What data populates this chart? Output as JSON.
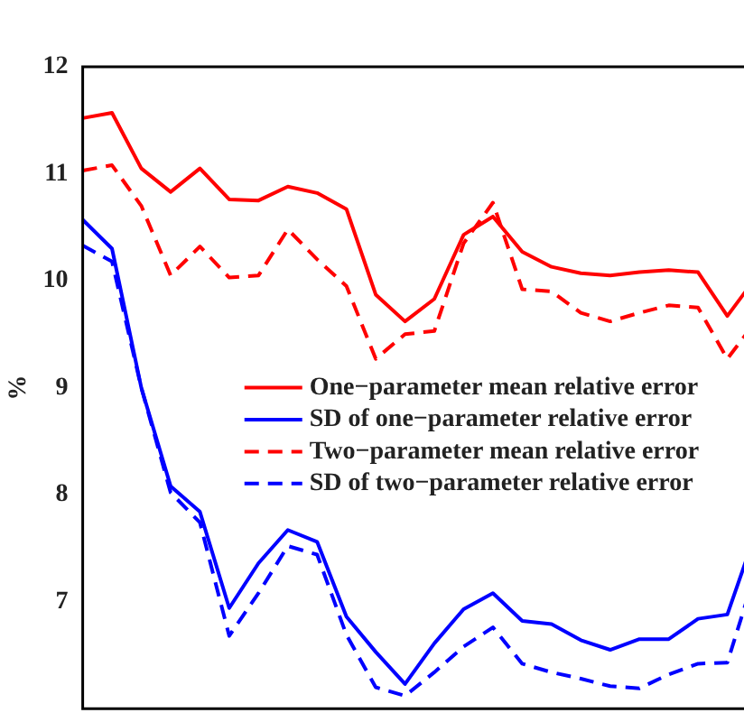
{
  "chart_data": {
    "type": "line",
    "ylabel": "%",
    "categories": [
      null,
      null,
      null,
      null,
      null,
      null,
      null,
      null,
      null,
      null,
      null,
      null,
      null,
      null,
      null,
      null,
      null,
      null,
      null,
      null,
      null,
      null,
      null,
      null
    ],
    "ylim": [
      6,
      12
    ],
    "yticks": [
      7,
      8,
      9,
      10,
      11,
      12
    ],
    "grid": false,
    "legend": "center",
    "marker": "none",
    "series": [
      {
        "name": "One−parameter mean relative error",
        "color": "#ff0000",
        "line_style": "solid",
        "values": [
          11.52,
          11.57,
          11.05,
          10.83,
          11.05,
          10.76,
          10.75,
          10.88,
          10.82,
          10.67,
          9.87,
          9.62,
          9.83,
          10.43,
          10.6,
          10.27,
          10.13,
          10.07,
          10.05,
          10.08,
          10.1,
          10.08,
          9.67,
          10.04
        ]
      },
      {
        "name": "SD of one−parameter relative error",
        "color": "#0000ff",
        "line_style": "solid",
        "values": [
          10.57,
          10.3,
          9.0,
          8.08,
          7.84,
          6.94,
          7.36,
          7.67,
          7.56,
          6.86,
          6.53,
          6.23,
          6.61,
          6.93,
          7.08,
          6.82,
          6.79,
          6.64,
          6.55,
          6.65,
          6.65,
          6.84,
          6.88,
          7.67
        ]
      },
      {
        "name": "Two−parameter mean relative error",
        "color": "#ff0000",
        "line_style": "dashed",
        "values": [
          11.03,
          11.08,
          10.7,
          10.05,
          10.32,
          10.03,
          10.05,
          10.48,
          10.2,
          9.95,
          9.27,
          9.5,
          9.53,
          10.35,
          10.73,
          9.92,
          9.9,
          9.7,
          9.62,
          9.7,
          9.77,
          9.75,
          9.27,
          9.63
        ]
      },
      {
        "name": "SD of two−parameter relative error",
        "color": "#0000ff",
        "line_style": "dashed",
        "values": [
          10.33,
          10.18,
          9.0,
          8.02,
          7.74,
          6.68,
          7.08,
          7.52,
          7.44,
          6.69,
          6.2,
          6.12,
          6.34,
          6.58,
          6.76,
          6.42,
          6.34,
          6.28,
          6.21,
          6.19,
          6.32,
          6.42,
          6.43,
          7.31
        ]
      }
    ]
  }
}
